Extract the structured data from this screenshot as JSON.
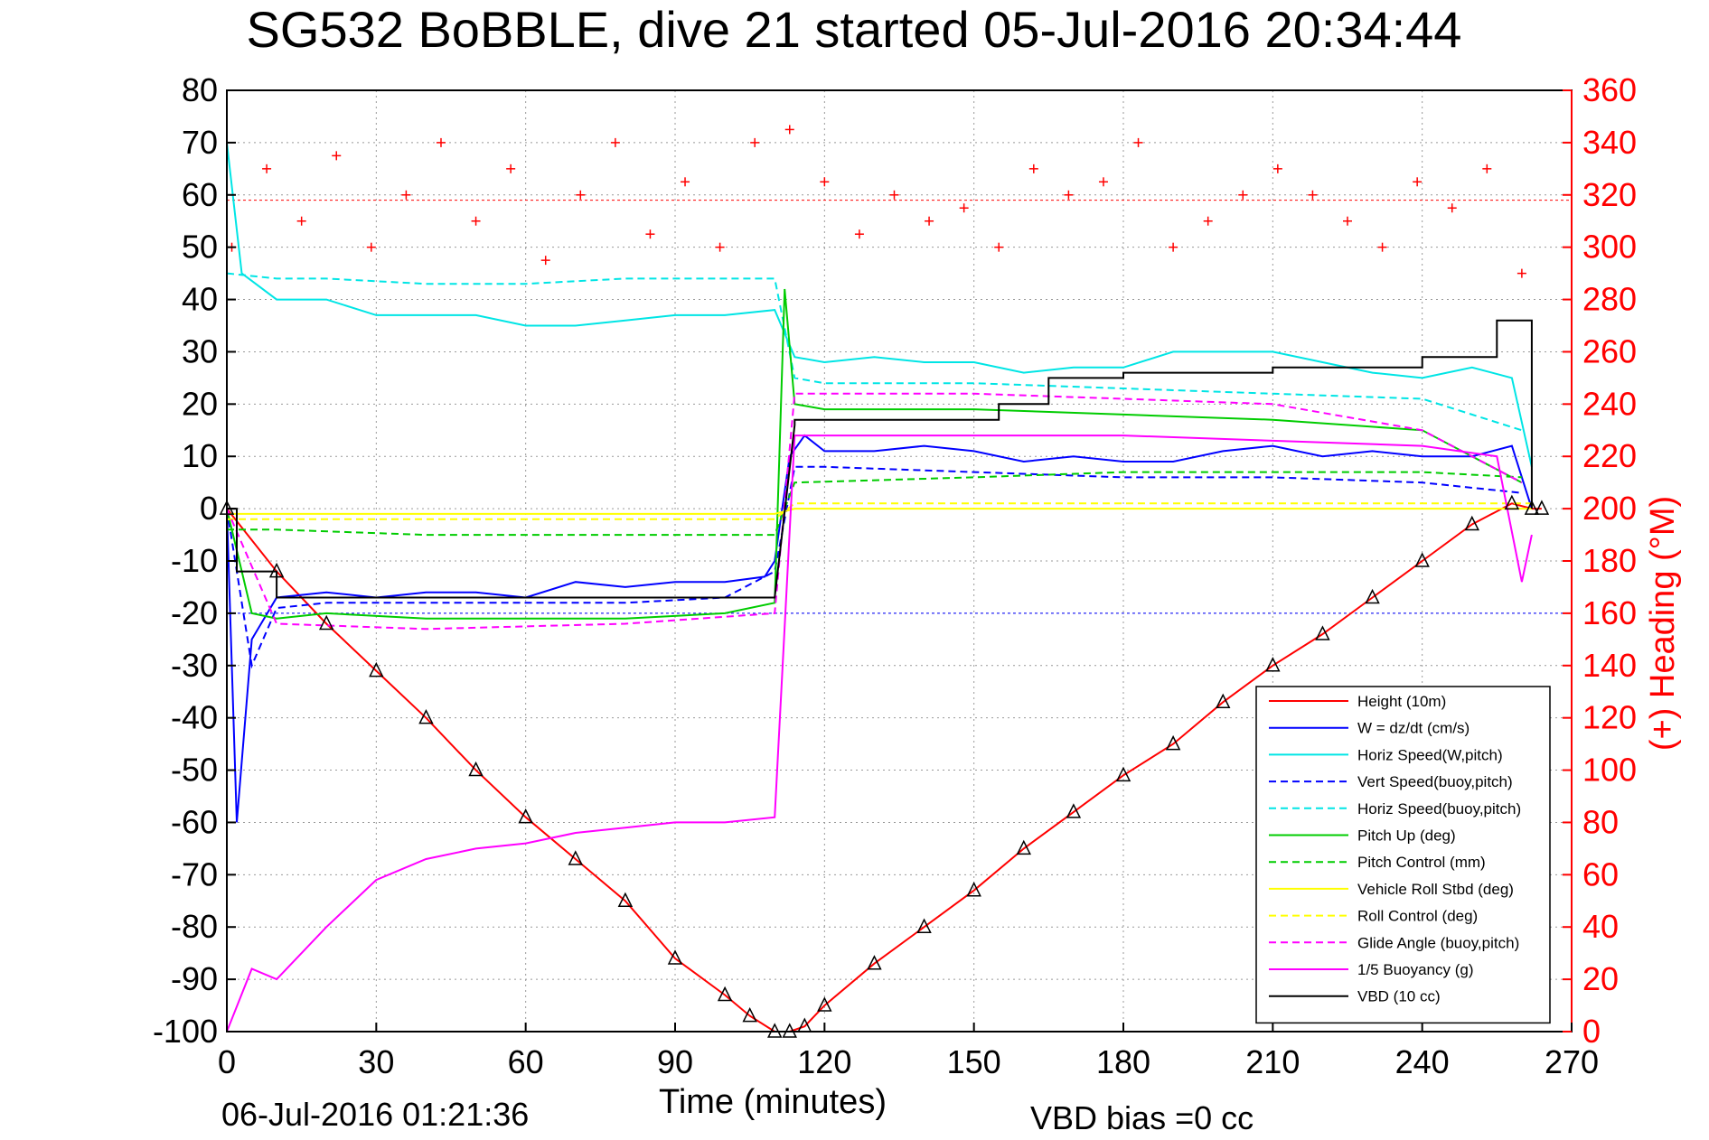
{
  "chart_data": {
    "type": "line",
    "title": "SG532 BoBBLE, dive 21 started 05-Jul-2016 20:34:44",
    "xlabel": "Time (minutes)",
    "ylabel": "",
    "ylabel_right": "(+) Heading (°M)",
    "xlim": [
      0,
      270
    ],
    "ylim": [
      -100,
      80
    ],
    "ylim_right": [
      0,
      360
    ],
    "x_ticks": [
      "0",
      "30",
      "60",
      "90",
      "120",
      "150",
      "180",
      "210",
      "240",
      "270"
    ],
    "y_ticks": [
      "80",
      "70",
      "60",
      "50",
      "40",
      "30",
      "20",
      "10",
      "0",
      "-10",
      "-20",
      "-30",
      "-40",
      "-50",
      "-60",
      "-70",
      "-80",
      "-90",
      "-100"
    ],
    "y_ticks_right": [
      "360",
      "340",
      "320",
      "300",
      "280",
      "260",
      "240",
      "220",
      "200",
      "180",
      "160",
      "140",
      "120",
      "100",
      "80",
      "60",
      "40",
      "20",
      "0"
    ],
    "grid": true,
    "legend_position": "bottom-right",
    "footer_time": "06-Jul-2016 01:21:36",
    "footer_note": "VBD bias =0 cc",
    "series": [
      {
        "name": "Height (10m)",
        "color": "#ff0000",
        "style": "solid",
        "axis": "left",
        "x": [
          0,
          10,
          20,
          30,
          40,
          50,
          60,
          70,
          80,
          90,
          100,
          105,
          110,
          113,
          116,
          120,
          130,
          140,
          150,
          160,
          170,
          180,
          190,
          200,
          210,
          220,
          230,
          240,
          250,
          258,
          262,
          264
        ],
        "y": [
          0,
          -12,
          -22,
          -31,
          -40,
          -50,
          -59,
          -67,
          -75,
          -86,
          -93,
          -97,
          -100,
          -100,
          -99,
          -95,
          -87,
          -80,
          -73,
          -65,
          -58,
          -51,
          -45,
          -37,
          -30,
          -24,
          -17,
          -10,
          -3,
          1,
          0,
          0
        ]
      },
      {
        "name": "W = dz/dt (cm/s)",
        "color": "#0000ff",
        "style": "solid",
        "axis": "left",
        "x": [
          0,
          2,
          5,
          10,
          20,
          30,
          40,
          50,
          60,
          70,
          80,
          90,
          100,
          108,
          110,
          113,
          116,
          120,
          130,
          140,
          150,
          160,
          170,
          180,
          190,
          200,
          210,
          220,
          230,
          240,
          250,
          258,
          262
        ],
        "y": [
          0,
          -60,
          -25,
          -17,
          -16,
          -17,
          -16,
          -16,
          -17,
          -14,
          -15,
          -14,
          -14,
          -13,
          -10,
          10,
          14,
          11,
          11,
          12,
          11,
          9,
          10,
          9,
          9,
          11,
          12,
          10,
          11,
          10,
          10,
          12,
          0
        ]
      },
      {
        "name": "Horiz Speed(W,pitch)",
        "color": "#00e5e5",
        "style": "solid",
        "axis": "left",
        "x": [
          0,
          3,
          10,
          20,
          30,
          40,
          50,
          60,
          70,
          80,
          90,
          100,
          110,
          114,
          120,
          130,
          140,
          150,
          160,
          170,
          180,
          190,
          200,
          210,
          220,
          230,
          240,
          250,
          258,
          262
        ],
        "y": [
          70,
          45,
          40,
          40,
          37,
          37,
          37,
          35,
          35,
          36,
          37,
          37,
          38,
          29,
          28,
          29,
          28,
          28,
          26,
          27,
          27,
          30,
          30,
          30,
          28,
          26,
          25,
          27,
          25,
          8
        ]
      },
      {
        "name": "Vert Speed(buoy,pitch)",
        "color": "#0000ff",
        "style": "dashed",
        "axis": "left",
        "x": [
          0,
          5,
          10,
          20,
          40,
          60,
          80,
          100,
          110,
          114,
          120,
          150,
          180,
          210,
          240,
          260
        ],
        "y": [
          0,
          -30,
          -19,
          -18,
          -18,
          -18,
          -18,
          -17,
          -12,
          8,
          8,
          7,
          6,
          6,
          5,
          3
        ]
      },
      {
        "name": "Horiz Speed(buoy,pitch)",
        "color": "#00e5e5",
        "style": "dashed",
        "axis": "left",
        "x": [
          0,
          10,
          20,
          40,
          60,
          80,
          100,
          110,
          114,
          120,
          150,
          180,
          210,
          240,
          260
        ],
        "y": [
          45,
          44,
          44,
          43,
          43,
          44,
          44,
          44,
          25,
          24,
          24,
          23,
          22,
          21,
          15
        ]
      },
      {
        "name": "Pitch Up (deg)",
        "color": "#00cc00",
        "style": "solid",
        "axis": "left",
        "x": [
          0,
          5,
          10,
          20,
          40,
          60,
          80,
          100,
          110,
          112,
          114,
          120,
          150,
          180,
          210,
          240,
          260
        ],
        "y": [
          0,
          -20,
          -21,
          -20,
          -21,
          -21,
          -21,
          -20,
          -18,
          42,
          20,
          19,
          19,
          18,
          17,
          15,
          5
        ]
      },
      {
        "name": "Pitch Control (mm)",
        "color": "#00cc00",
        "style": "dashed",
        "axis": "left",
        "x": [
          0,
          10,
          40,
          80,
          110,
          114,
          150,
          180,
          210,
          240,
          260
        ],
        "y": [
          -4,
          -4,
          -5,
          -5,
          -5,
          5,
          6,
          7,
          7,
          7,
          6
        ]
      },
      {
        "name": "Vehicle Roll Stbd (deg)",
        "color": "#ffff00",
        "style": "solid",
        "axis": "left",
        "x": [
          0,
          110,
          114,
          262
        ],
        "y": [
          -1,
          -1,
          0,
          0
        ]
      },
      {
        "name": "Roll Control (deg)",
        "color": "#ffff00",
        "style": "dashed",
        "axis": "left",
        "x": [
          0,
          110,
          114,
          262
        ],
        "y": [
          -2,
          -2,
          1,
          1
        ]
      },
      {
        "name": "Glide Angle (buoy,pitch)",
        "color": "#ff00ff",
        "style": "dashed",
        "axis": "left",
        "x": [
          0,
          10,
          40,
          80,
          110,
          114,
          150,
          180,
          210,
          240,
          260
        ],
        "y": [
          0,
          -22,
          -23,
          -22,
          -20,
          22,
          22,
          21,
          20,
          15,
          5
        ]
      },
      {
        "name": "1/5 Buoyancy (g)",
        "color": "#ff00ff",
        "style": "solid",
        "axis": "left",
        "x": [
          0,
          5,
          10,
          20,
          30,
          40,
          50,
          60,
          70,
          80,
          90,
          100,
          110,
          114,
          120,
          150,
          180,
          210,
          240,
          255,
          260,
          262
        ],
        "y": [
          -100,
          -88,
          -90,
          -80,
          -71,
          -67,
          -65,
          -64,
          -62,
          -61,
          -60,
          -60,
          -59,
          14,
          14,
          14,
          14,
          13,
          12,
          10,
          -14,
          -5
        ]
      },
      {
        "name": "VBD (10 cc)",
        "color": "#000000",
        "style": "solid",
        "axis": "left",
        "x": [
          0,
          2,
          2,
          10,
          10,
          110,
          110,
          114,
          114,
          155,
          155,
          165,
          165,
          180,
          180,
          210,
          210,
          240,
          240,
          255,
          255,
          262,
          262
        ],
        "y": [
          0,
          0,
          -12,
          -12,
          -17,
          -17,
          -17,
          16,
          17,
          17,
          20,
          20,
          25,
          25,
          26,
          26,
          27,
          27,
          29,
          29,
          36,
          36,
          0
        ]
      }
    ],
    "heading": {
      "name": "Heading",
      "color": "#ff0000",
      "marker": "+",
      "axis": "right",
      "x": [
        1,
        8,
        15,
        22,
        29,
        36,
        43,
        50,
        57,
        64,
        71,
        78,
        85,
        92,
        99,
        106,
        113,
        120,
        127,
        134,
        141,
        148,
        155,
        162,
        169,
        176,
        183,
        190,
        197,
        204,
        211,
        218,
        225,
        232,
        239,
        246,
        253,
        260
      ],
      "y": [
        300,
        330,
        310,
        335,
        300,
        320,
        340,
        310,
        330,
        295,
        320,
        340,
        305,
        325,
        300,
        340,
        345,
        325,
        305,
        320,
        310,
        315,
        300,
        330,
        320,
        325,
        340,
        300,
        310,
        320,
        330,
        320,
        310,
        300,
        325,
        315,
        330,
        290
      ]
    },
    "reference_lines": {
      "heading_target": 318,
      "w_target": -20
    }
  }
}
